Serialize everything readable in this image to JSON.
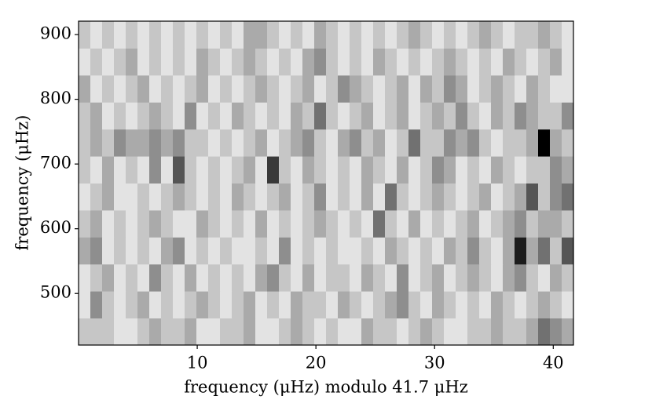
{
  "chart_data": {
    "type": "heatmap",
    "xlabel": "frequency (μHz) modulo 41.7 μHz",
    "ylabel": "frequency (μHz)",
    "xlim": [
      0,
      41.7
    ],
    "ylim": [
      420.3,
      920.7
    ],
    "xticks": [
      10,
      20,
      30,
      40
    ],
    "yticks": [
      500,
      600,
      700,
      800,
      900
    ],
    "z": [
      [
        2,
        2,
        2,
        1,
        1,
        2,
        3,
        2,
        2,
        3,
        1,
        1,
        2,
        2,
        3,
        1,
        1,
        2,
        3,
        2,
        1,
        2,
        1,
        1,
        3,
        2,
        2,
        1,
        2,
        3,
        2,
        1,
        1,
        2,
        2,
        3,
        2,
        2,
        3,
        5,
        4,
        3
      ],
      [
        1,
        4,
        2,
        1,
        2,
        3,
        1,
        2,
        1,
        2,
        3,
        2,
        1,
        2,
        3,
        1,
        2,
        1,
        3,
        2,
        2,
        1,
        3,
        2,
        1,
        2,
        3,
        4,
        2,
        1,
        3,
        2,
        1,
        2,
        1,
        3,
        2,
        1,
        2,
        3,
        2,
        1
      ],
      [
        1,
        2,
        3,
        1,
        2,
        1,
        4,
        2,
        1,
        3,
        1,
        2,
        1,
        2,
        1,
        3,
        4,
        2,
        1,
        3,
        1,
        2,
        2,
        1,
        3,
        2,
        1,
        4,
        1,
        2,
        3,
        1,
        2,
        3,
        2,
        1,
        3,
        4,
        2,
        1,
        3,
        2
      ],
      [
        3,
        4,
        1,
        2,
        1,
        2,
        1,
        3,
        4,
        1,
        2,
        1,
        2,
        1,
        1,
        2,
        1,
        4,
        1,
        2,
        1,
        2,
        1,
        1,
        2,
        1,
        3,
        2,
        1,
        2,
        1,
        3,
        2,
        4,
        2,
        1,
        3,
        8,
        3,
        5,
        2,
        6
      ],
      [
        2,
        3,
        1,
        2,
        1,
        2,
        3,
        2,
        1,
        1,
        3,
        2,
        1,
        2,
        1,
        3,
        1,
        2,
        1,
        2,
        3,
        2,
        1,
        2,
        1,
        5,
        2,
        1,
        3,
        1,
        2,
        1,
        2,
        3,
        1,
        2,
        3,
        4,
        2,
        3,
        3,
        2
      ],
      [
        1,
        2,
        3,
        1,
        1,
        2,
        1,
        2,
        3,
        2,
        1,
        2,
        1,
        3,
        2,
        1,
        2,
        3,
        1,
        2,
        4,
        1,
        2,
        1,
        3,
        1,
        5,
        2,
        1,
        2,
        3,
        2,
        1,
        2,
        3,
        1,
        2,
        3,
        6,
        2,
        4,
        5
      ],
      [
        2,
        1,
        3,
        1,
        2,
        1,
        4,
        1,
        6,
        2,
        1,
        2,
        1,
        2,
        3,
        1,
        7,
        2,
        1,
        3,
        2,
        1,
        2,
        1,
        3,
        2,
        1,
        3,
        1,
        2,
        4,
        3,
        1,
        2,
        1,
        3,
        2,
        1,
        2,
        2,
        4,
        3
      ],
      [
        2,
        3,
        2,
        4,
        3,
        3,
        4,
        3,
        4,
        2,
        2,
        1,
        2,
        1,
        2,
        3,
        1,
        2,
        3,
        4,
        2,
        1,
        3,
        4,
        2,
        3,
        1,
        2,
        5,
        2,
        2,
        4,
        3,
        4,
        2,
        1,
        2,
        2,
        3,
        9,
        3,
        2
      ],
      [
        2,
        3,
        1,
        2,
        1,
        2,
        3,
        2,
        1,
        4,
        1,
        2,
        1,
        3,
        2,
        1,
        2,
        1,
        3,
        2,
        5,
        2,
        1,
        2,
        3,
        1,
        2,
        3,
        1,
        2,
        3,
        2,
        4,
        2,
        1,
        3,
        2,
        4,
        3,
        2,
        2,
        4
      ],
      [
        3,
        1,
        2,
        1,
        2,
        3,
        1,
        2,
        1,
        2,
        3,
        1,
        2,
        1,
        2,
        3,
        2,
        1,
        2,
        3,
        1,
        2,
        4,
        3,
        2,
        1,
        2,
        3,
        1,
        3,
        2,
        4,
        3,
        1,
        2,
        3,
        2,
        1,
        3,
        2,
        1,
        1
      ],
      [
        1,
        2,
        1,
        2,
        3,
        1,
        2,
        1,
        2,
        1,
        3,
        2,
        1,
        2,
        3,
        2,
        1,
        2,
        1,
        3,
        4,
        2,
        1,
        2,
        1,
        3,
        2,
        1,
        2,
        1,
        2,
        3,
        2,
        1,
        2,
        1,
        3,
        2,
        1,
        2,
        3,
        1
      ],
      [
        2,
        1,
        2,
        1,
        2,
        1,
        2,
        1,
        2,
        1,
        2,
        1,
        2,
        1,
        3,
        3,
        2,
        1,
        2,
        1,
        3,
        2,
        1,
        2,
        1,
        2,
        1,
        2,
        3,
        2,
        1,
        2,
        1,
        2,
        3,
        2,
        1,
        2,
        2,
        3,
        2,
        1
      ]
    ]
  }
}
